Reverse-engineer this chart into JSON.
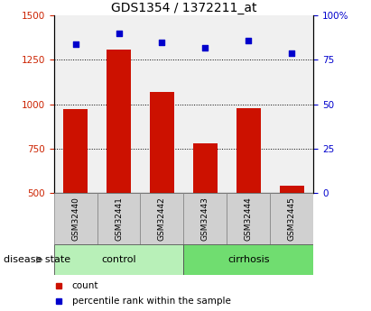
{
  "title": "GDS1354 / 1372211_at",
  "samples": [
    "GSM32440",
    "GSM32441",
    "GSM32442",
    "GSM32443",
    "GSM32444",
    "GSM32445"
  ],
  "counts": [
    970,
    1310,
    1070,
    780,
    980,
    540
  ],
  "percentile_ranks": [
    84,
    90,
    85,
    82,
    86,
    79
  ],
  "groups": [
    {
      "label": "control",
      "indices": [
        0,
        1,
        2
      ],
      "color": "#b8f0b8"
    },
    {
      "label": "cirrhosis",
      "indices": [
        3,
        4,
        5
      ],
      "color": "#70dd70"
    }
  ],
  "bar_color": "#cc1100",
  "dot_color": "#0000cc",
  "ylim_left": [
    500,
    1500
  ],
  "ylim_right": [
    0,
    100
  ],
  "yticks_left": [
    500,
    750,
    1000,
    1250,
    1500
  ],
  "yticks_right": [
    0,
    25,
    50,
    75,
    100
  ],
  "ytick_labels_right": [
    "0",
    "25",
    "50",
    "75",
    "100%"
  ],
  "grid_values": [
    750,
    1000,
    1250
  ],
  "background_color": "#ffffff",
  "bar_width": 0.55,
  "disease_state_label": "disease state",
  "legend_items": [
    {
      "label": "count",
      "color": "#cc1100"
    },
    {
      "label": "percentile rank within the sample",
      "color": "#0000cc"
    }
  ],
  "title_fontsize": 10,
  "tick_fontsize": 7.5,
  "sample_fontsize": 6.5,
  "group_fontsize": 8,
  "legend_fontsize": 7.5,
  "disease_fontsize": 8
}
